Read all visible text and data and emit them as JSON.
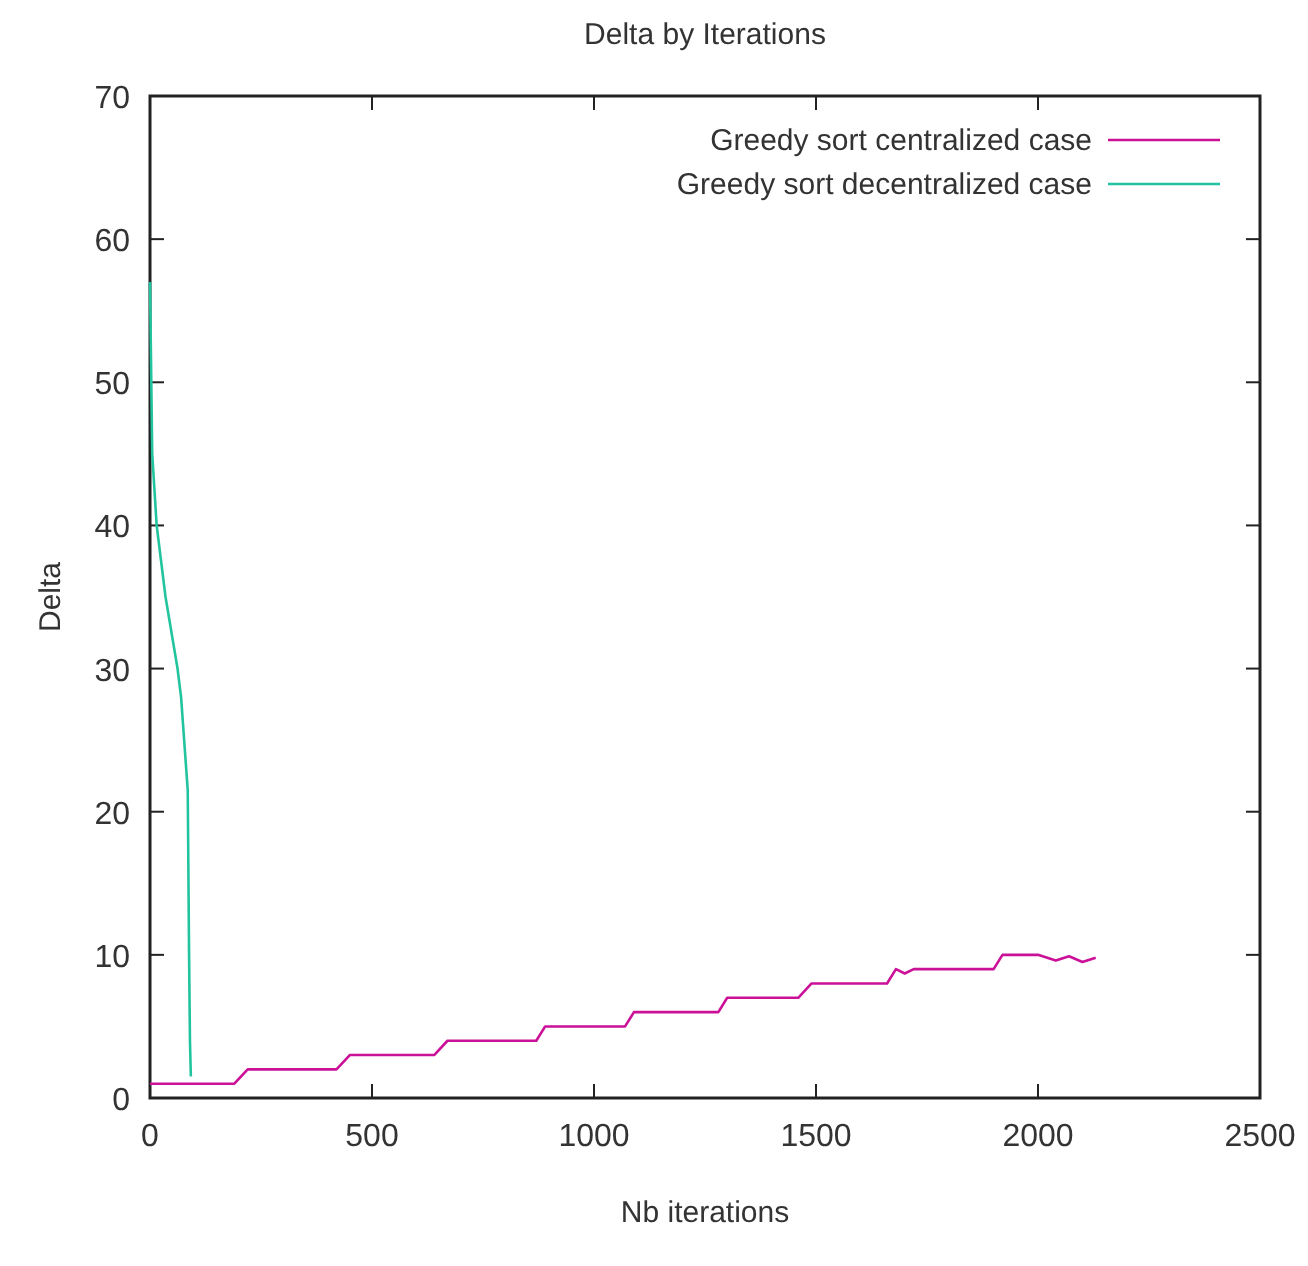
{
  "chart_data": {
    "type": "line",
    "title": "Delta by Iterations",
    "xlabel": "Nb iterations",
    "ylabel": "Delta",
    "xlim": [
      0,
      2500
    ],
    "ylim": [
      0,
      70
    ],
    "xticks": [
      0,
      500,
      1000,
      1500,
      2000,
      2500
    ],
    "yticks": [
      0,
      10,
      20,
      30,
      40,
      50,
      60,
      70
    ],
    "grid": false,
    "legend": "top right",
    "series": [
      {
        "name": "Greedy sort centralized case",
        "color": "#cc1199",
        "x": [
          0,
          190,
          220,
          420,
          450,
          640,
          670,
          870,
          890,
          1070,
          1090,
          1280,
          1300,
          1460,
          1490,
          1660,
          1680,
          1700,
          1720,
          1900,
          1920,
          2000,
          2040,
          2070,
          2100,
          2130
        ],
        "values": [
          1,
          1,
          2,
          2,
          3,
          3,
          4,
          4,
          5,
          5,
          6,
          6,
          7,
          7,
          8,
          8,
          9,
          8.7,
          9,
          9,
          10,
          10,
          9.6,
          9.9,
          9.5,
          9.8
        ]
      },
      {
        "name": "Greedy sort decentralized case",
        "color": "#22c4a0",
        "x": [
          0,
          5,
          15,
          35,
          62,
          70,
          85,
          88,
          90,
          92
        ],
        "values": [
          57,
          45,
          40,
          35,
          30,
          28,
          21.5,
          10,
          4,
          1.5
        ]
      }
    ]
  }
}
